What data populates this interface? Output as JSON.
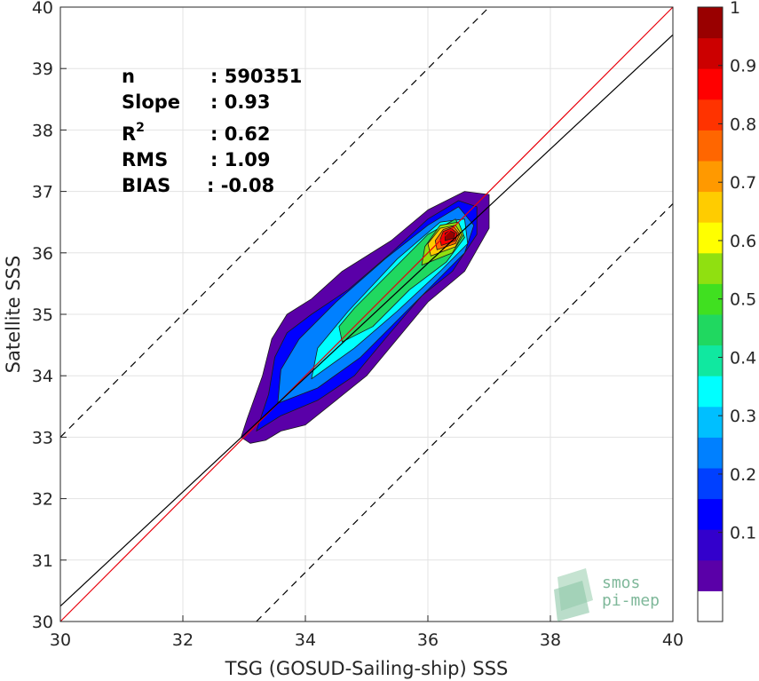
{
  "chart_data": {
    "type": "heatmap",
    "subtype": "density scatter (filled contours)",
    "xlabel": "TSG (GOSUD-Sailing-ship) SSS",
    "ylabel": "Satellite SSS",
    "xlim": [
      30,
      40
    ],
    "ylim": [
      30,
      40
    ],
    "xticks": [
      "30",
      "32",
      "34",
      "36",
      "38",
      "40"
    ],
    "yticks": [
      "30",
      "31",
      "32",
      "33",
      "34",
      "35",
      "36",
      "37",
      "38",
      "39",
      "40"
    ],
    "grid": true,
    "stats": {
      "n_label": "n",
      "n_value": ": 590351",
      "slope_label": "Slope",
      "slope_value": ": 0.93",
      "r2_label": "R",
      "r2_sup": "2",
      "r2_value": ": 0.62",
      "rms_label": "RMS",
      "rms_value": ": 1.09",
      "bias_label": "BIAS",
      "bias_value": ": -0.08"
    },
    "lines": [
      {
        "kind": "identity",
        "color": "#e8000b",
        "style": "solid",
        "slope": 1,
        "intercept": 0
      },
      {
        "kind": "regression",
        "color": "#000000",
        "style": "solid",
        "slope": 0.93,
        "intercept": 2.35
      },
      {
        "kind": "upper bound",
        "color": "#000000",
        "style": "dashed",
        "slope": 1,
        "intercept": 3
      },
      {
        "kind": "lower bound",
        "color": "#000000",
        "style": "dashed",
        "slope": 1,
        "intercept": -3.2
      }
    ],
    "density_contours": [
      {
        "level": 0.05,
        "points": [
          [
            33.1,
            32.9
          ],
          [
            33.35,
            32.95
          ],
          [
            33.6,
            33.1
          ],
          [
            34.0,
            33.2
          ],
          [
            34.5,
            33.6
          ],
          [
            35.0,
            34.0
          ],
          [
            35.5,
            34.6
          ],
          [
            36.0,
            35.2
          ],
          [
            36.6,
            35.7
          ],
          [
            37.0,
            36.4
          ],
          [
            37.0,
            36.95
          ],
          [
            36.6,
            37.0
          ],
          [
            36.0,
            36.7
          ],
          [
            35.4,
            36.2
          ],
          [
            34.6,
            35.7
          ],
          [
            34.1,
            35.25
          ],
          [
            33.7,
            35.0
          ],
          [
            33.45,
            34.6
          ],
          [
            33.3,
            34.0
          ],
          [
            33.05,
            33.3
          ],
          [
            32.95,
            33.0
          ]
        ]
      },
      {
        "level": 0.15,
        "points": [
          [
            33.2,
            33.1
          ],
          [
            33.6,
            33.35
          ],
          [
            34.2,
            33.6
          ],
          [
            34.8,
            34.0
          ],
          [
            35.3,
            34.6
          ],
          [
            35.9,
            35.3
          ],
          [
            36.4,
            35.7
          ],
          [
            36.8,
            36.3
          ],
          [
            36.8,
            36.75
          ],
          [
            36.5,
            36.85
          ],
          [
            36.0,
            36.55
          ],
          [
            35.4,
            36.0
          ],
          [
            34.7,
            35.4
          ],
          [
            34.1,
            35.0
          ],
          [
            33.7,
            34.7
          ],
          [
            33.5,
            34.3
          ],
          [
            33.4,
            33.7
          ]
        ]
      },
      {
        "level": 0.25,
        "points": [
          [
            33.55,
            33.55
          ],
          [
            34.2,
            33.8
          ],
          [
            34.9,
            34.3
          ],
          [
            35.5,
            34.9
          ],
          [
            36.1,
            35.5
          ],
          [
            36.6,
            36.0
          ],
          [
            36.75,
            36.45
          ],
          [
            36.5,
            36.75
          ],
          [
            36.0,
            36.45
          ],
          [
            35.3,
            35.9
          ],
          [
            34.5,
            35.2
          ],
          [
            33.9,
            34.6
          ],
          [
            33.6,
            34.1
          ]
        ]
      },
      {
        "level": 0.35,
        "points": [
          [
            34.1,
            33.95
          ],
          [
            34.8,
            34.45
          ],
          [
            35.5,
            35.05
          ],
          [
            36.2,
            35.7
          ],
          [
            36.65,
            36.15
          ],
          [
            36.6,
            36.55
          ],
          [
            36.2,
            36.5
          ],
          [
            35.5,
            35.9
          ],
          [
            34.7,
            35.05
          ],
          [
            34.2,
            34.45
          ]
        ]
      },
      {
        "level": 0.45,
        "points": [
          [
            34.6,
            34.55
          ],
          [
            35.1,
            34.8
          ],
          [
            35.7,
            35.4
          ],
          [
            36.3,
            35.85
          ],
          [
            36.6,
            36.25
          ],
          [
            36.45,
            36.55
          ],
          [
            36.0,
            36.3
          ],
          [
            35.3,
            35.6
          ],
          [
            34.8,
            35.1
          ],
          [
            34.55,
            34.8
          ]
        ]
      },
      {
        "level": 0.55,
        "points": [
          [
            35.9,
            35.8
          ],
          [
            36.4,
            36.0
          ],
          [
            36.58,
            36.3
          ],
          [
            36.5,
            36.5
          ],
          [
            36.2,
            36.45
          ],
          [
            35.95,
            36.1
          ]
        ]
      },
      {
        "level": 0.65,
        "points": [
          [
            36.05,
            35.95
          ],
          [
            36.45,
            36.1
          ],
          [
            36.55,
            36.3
          ],
          [
            36.45,
            36.45
          ],
          [
            36.2,
            36.4
          ],
          [
            36.0,
            36.15
          ]
        ]
      },
      {
        "level": 0.75,
        "points": [
          [
            36.15,
            36.05
          ],
          [
            36.45,
            36.15
          ],
          [
            36.52,
            36.3
          ],
          [
            36.42,
            36.43
          ],
          [
            36.25,
            36.38
          ],
          [
            36.12,
            36.2
          ]
        ]
      },
      {
        "level": 0.85,
        "points": [
          [
            36.22,
            36.12
          ],
          [
            36.45,
            36.2
          ],
          [
            36.48,
            36.32
          ],
          [
            36.38,
            36.4
          ],
          [
            36.25,
            36.35
          ],
          [
            36.2,
            36.22
          ]
        ]
      },
      {
        "level": 0.95,
        "points": [
          [
            36.28,
            36.2
          ],
          [
            36.42,
            36.24
          ],
          [
            36.44,
            36.32
          ],
          [
            36.36,
            36.36
          ],
          [
            36.28,
            36.32
          ]
        ]
      }
    ],
    "colorbar": {
      "ticks": [
        "0.1",
        "0.2",
        "0.3",
        "0.4",
        "0.5",
        "0.6",
        "0.7",
        "0.8",
        "0.9",
        "1"
      ],
      "colors": [
        "#ffffff",
        "#5a00a8",
        "#3300cc",
        "#0000ff",
        "#0040ff",
        "#0080ff",
        "#00bfff",
        "#00ffff",
        "#10e8a0",
        "#20d860",
        "#40e020",
        "#90e010",
        "#ffff00",
        "#ffcc00",
        "#ff9900",
        "#ff6600",
        "#ff3300",
        "#ff0000",
        "#cc0000",
        "#990000"
      ]
    }
  },
  "logo": {
    "line1": "smos",
    "line2": "pi-mep"
  }
}
